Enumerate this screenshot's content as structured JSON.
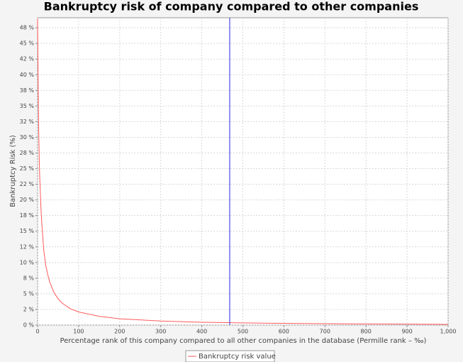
{
  "chart_data": {
    "type": "line",
    "title": "Bankruptcy risk of company compared to other companies",
    "x_label": "Percentage rank of this company compared to all other companies in the database (Permille rank – ‰)",
    "y_label": "Bankruptcy Risk (%)",
    "x": [
      0,
      1,
      2,
      3,
      5,
      8,
      10,
      15,
      20,
      25,
      30,
      40,
      50,
      60,
      80,
      100,
      150,
      200,
      300,
      400,
      500,
      600,
      700,
      800,
      900,
      1000
    ],
    "series": [
      {
        "name": "Bankruptcy risk value",
        "color": "#ff5a5a",
        "values": [
          49,
          42,
          35,
          30,
          24,
          19,
          16.5,
          12,
          9.5,
          8,
          6.8,
          5.2,
          4.2,
          3.5,
          2.6,
          2.1,
          1.4,
          1.0,
          0.65,
          0.45,
          0.35,
          0.28,
          0.22,
          0.18,
          0.15,
          0.12
        ]
      }
    ],
    "marker": {
      "x": 468,
      "color": "#4a4ae6"
    },
    "xlim": [
      0,
      1000
    ],
    "xticks": [
      0,
      100,
      200,
      300,
      400,
      500,
      600,
      700,
      800,
      900,
      {
        "value": 1000,
        "label": "1,000"
      }
    ],
    "ylim": [
      0,
      49.1
    ],
    "yticks": [
      {
        "value": 0,
        "label": "0 %"
      },
      {
        "value": 2.5,
        "label": "2 %"
      },
      {
        "value": 5,
        "label": "5 %"
      },
      {
        "value": 7.5,
        "label": "8 %"
      },
      {
        "value": 10,
        "label": "10 %"
      },
      {
        "value": 12.5,
        "label": "12 %"
      },
      {
        "value": 15,
        "label": "15 %"
      },
      {
        "value": 17.5,
        "label": "18 %"
      },
      {
        "value": 20,
        "label": "20 %"
      },
      {
        "value": 22.5,
        "label": "22 %"
      },
      {
        "value": 25,
        "label": "25 %"
      },
      {
        "value": 27.5,
        "label": "28 %"
      },
      {
        "value": 30,
        "label": "30 %"
      },
      {
        "value": 32.5,
        "label": "32 %"
      },
      {
        "value": 35,
        "label": "35 %"
      },
      {
        "value": 37.5,
        "label": "38 %"
      },
      {
        "value": 40,
        "label": "40 %"
      },
      {
        "value": 42.5,
        "label": "42 %"
      },
      {
        "value": 45,
        "label": "45 %"
      },
      {
        "value": 47.5,
        "label": "48 %"
      }
    ],
    "grid": true,
    "legend": "bottom"
  }
}
